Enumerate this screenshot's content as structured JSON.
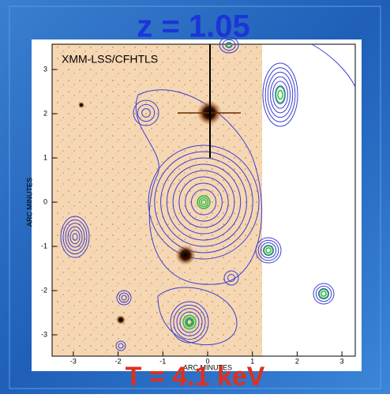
{
  "title": "z = 1.05",
  "image_label": "XMM-LSS/CFHTLS",
  "y_axis_label": "ARC MINUTES",
  "x_axis_label": "ARC MINUTES",
  "xticks": [
    -3,
    -2,
    -1,
    0,
    1,
    2,
    3
  ],
  "yticks": [
    -3,
    -2,
    -1,
    0,
    1,
    2,
    3
  ],
  "temperature": "T = 4.1 keV"
}
